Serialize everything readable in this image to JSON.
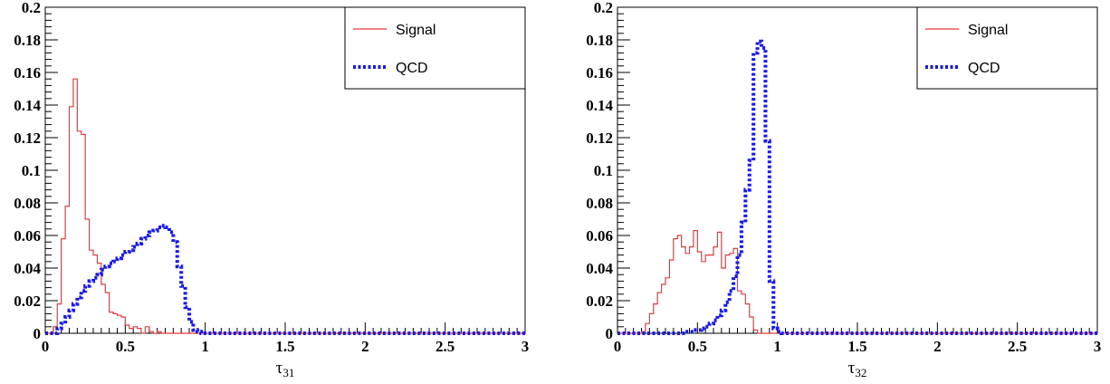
{
  "chart_data": [
    {
      "type": "line",
      "xlabel": "τ",
      "xlabel_sub": "31",
      "ylabel": "",
      "xlim": [
        0,
        3
      ],
      "ylim": [
        0,
        0.2
      ],
      "x_ticks": [
        "0",
        "0.5",
        "1",
        "1.5",
        "2",
        "2.5",
        "3"
      ],
      "y_ticks": [
        "0",
        "0.02",
        "0.04",
        "0.06",
        "0.08",
        "0.1",
        "0.12",
        "0.14",
        "0.16",
        "0.18",
        "0.2"
      ],
      "legend_position": "top-right",
      "bin_width": 0.025,
      "series": [
        {
          "name": "Signal",
          "color": "#e8393b",
          "style": "solid",
          "values": [
            0,
            0,
            0.004,
            0.018,
            0.058,
            0.078,
            0.139,
            0.156,
            0.124,
            0.122,
            0.07,
            0.051,
            0.048,
            0.043,
            0.03,
            0.025,
            0.013,
            0.012,
            0.011,
            0.01,
            0.005,
            0.003,
            0.004,
            0.003,
            0,
            0.004,
            0.001,
            0,
            0.001,
            0,
            0,
            0,
            0,
            0,
            0,
            0,
            0,
            0,
            0,
            0,
            0,
            0,
            0,
            0,
            0,
            0,
            0,
            0,
            0,
            0,
            0,
            0,
            0,
            0,
            0,
            0,
            0,
            0,
            0,
            0,
            0,
            0,
            0,
            0,
            0,
            0,
            0,
            0,
            0,
            0,
            0,
            0,
            0,
            0,
            0,
            0,
            0,
            0,
            0,
            0,
            0,
            0,
            0,
            0,
            0,
            0,
            0,
            0,
            0,
            0,
            0,
            0,
            0,
            0,
            0,
            0,
            0,
            0,
            0,
            0,
            0,
            0,
            0,
            0,
            0,
            0,
            0,
            0,
            0,
            0,
            0,
            0,
            0,
            0,
            0,
            0,
            0,
            0,
            0,
            0
          ]
        },
        {
          "name": "QCD",
          "color": "#1a1ae6",
          "style": "dotted",
          "values": [
            0,
            0,
            0,
            0.003,
            0.006,
            0.01,
            0.014,
            0.018,
            0.022,
            0.026,
            0.029,
            0.032,
            0.034,
            0.036,
            0.039,
            0.041,
            0.043,
            0.044,
            0.046,
            0.048,
            0.05,
            0.051,
            0.053,
            0.055,
            0.058,
            0.06,
            0.062,
            0.063,
            0.065,
            0.066,
            0.065,
            0.062,
            0.056,
            0.041,
            0.029,
            0.016,
            0.007,
            0.002,
            0.001,
            0,
            0,
            0,
            0,
            0,
            0,
            0,
            0,
            0,
            0,
            0,
            0,
            0,
            0,
            0,
            0,
            0,
            0,
            0,
            0,
            0,
            0,
            0,
            0,
            0,
            0,
            0,
            0,
            0,
            0,
            0,
            0,
            0,
            0,
            0,
            0,
            0,
            0,
            0,
            0,
            0,
            0,
            0,
            0,
            0,
            0,
            0,
            0,
            0,
            0,
            0,
            0,
            0,
            0,
            0,
            0,
            0,
            0,
            0,
            0,
            0,
            0,
            0,
            0,
            0,
            0,
            0,
            0,
            0,
            0,
            0,
            0,
            0,
            0,
            0,
            0,
            0,
            0,
            0,
            0,
            0
          ]
        }
      ]
    },
    {
      "type": "line",
      "xlabel": "τ",
      "xlabel_sub": "32",
      "ylabel": "",
      "xlim": [
        0,
        3
      ],
      "ylim": [
        0,
        0.2
      ],
      "x_ticks": [
        "0",
        "0.5",
        "1",
        "1.5",
        "2",
        "2.5",
        "3"
      ],
      "y_ticks": [
        "0",
        "0.02",
        "0.04",
        "0.06",
        "0.08",
        "0.1",
        "0.12",
        "0.14",
        "0.16",
        "0.18",
        "0.2"
      ],
      "legend_position": "top-right",
      "bin_width": 0.025,
      "series": [
        {
          "name": "Signal",
          "color": "#e8393b",
          "style": "solid",
          "values": [
            0,
            0,
            0,
            0,
            0,
            0,
            0.001,
            0.006,
            0.012,
            0.018,
            0.025,
            0.03,
            0.034,
            0.045,
            0.058,
            0.06,
            0.053,
            0.049,
            0.053,
            0.063,
            0.05,
            0.044,
            0.048,
            0.048,
            0.053,
            0.062,
            0.04,
            0.048,
            0.049,
            0.052,
            0.026,
            0.024,
            0.018,
            0.01,
            0.002,
            0,
            0,
            0,
            0,
            0,
            0,
            0,
            0,
            0,
            0,
            0,
            0,
            0,
            0,
            0,
            0,
            0,
            0,
            0,
            0,
            0,
            0,
            0,
            0,
            0,
            0,
            0,
            0,
            0,
            0,
            0,
            0,
            0,
            0,
            0,
            0,
            0,
            0,
            0,
            0,
            0,
            0,
            0,
            0,
            0,
            0,
            0,
            0,
            0,
            0,
            0,
            0,
            0,
            0,
            0,
            0,
            0,
            0,
            0,
            0,
            0,
            0,
            0,
            0,
            0,
            0,
            0,
            0,
            0,
            0,
            0,
            0,
            0,
            0,
            0,
            0,
            0,
            0,
            0,
            0,
            0,
            0,
            0,
            0,
            0
          ]
        },
        {
          "name": "QCD",
          "color": "#1a1ae6",
          "style": "dotted",
          "values": [
            0,
            0,
            0,
            0,
            0,
            0,
            0,
            0,
            0,
            0,
            0,
            0,
            0,
            0,
            0,
            0,
            0,
            0.001,
            0.001,
            0.002,
            0.002,
            0.003,
            0.004,
            0.006,
            0.008,
            0.011,
            0.014,
            0.019,
            0.026,
            0.035,
            0.048,
            0.068,
            0.088,
            0.106,
            0.172,
            0.179,
            0.175,
            0.118,
            0.032,
            0.003,
            0.001,
            0,
            0,
            0,
            0,
            0,
            0,
            0,
            0,
            0,
            0,
            0,
            0,
            0,
            0,
            0,
            0,
            0,
            0,
            0,
            0,
            0,
            0,
            0,
            0,
            0,
            0,
            0,
            0,
            0,
            0,
            0,
            0,
            0,
            0,
            0,
            0,
            0,
            0,
            0,
            0,
            0,
            0,
            0,
            0,
            0,
            0,
            0,
            0,
            0,
            0,
            0,
            0,
            0,
            0,
            0,
            0,
            0,
            0,
            0,
            0,
            0,
            0,
            0,
            0,
            0,
            0,
            0,
            0,
            0,
            0,
            0,
            0,
            0,
            0,
            0,
            0,
            0,
            0,
            0
          ]
        }
      ]
    }
  ]
}
